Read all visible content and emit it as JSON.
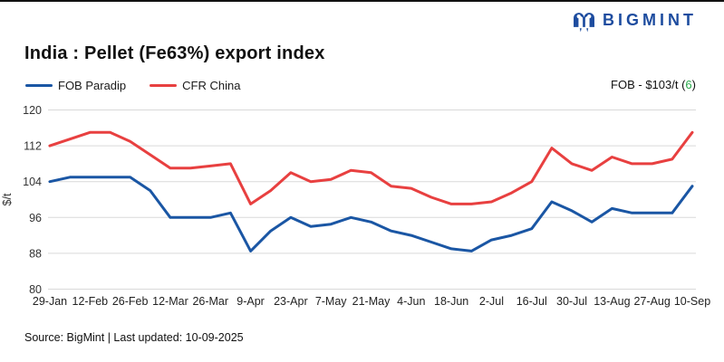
{
  "header": {
    "logo_text": "BIGMINT"
  },
  "annotation": {
    "prefix": "FOB - $103/t (",
    "value": "6",
    "suffix": ")"
  },
  "footer": {
    "source": "Source: BigMint | Last updated: 10-09-2025"
  },
  "colors": {
    "fob_blue": "#1a56a4",
    "cfr_red": "#e84040",
    "grid": "#d9d9d9",
    "tick_text": "#333333",
    "delta_green": "#27a84a",
    "logo_navy": "#1d4c9f"
  },
  "chart_data": {
    "type": "line",
    "title": "India : Pellet (Fe63%) export index",
    "xlabel": "",
    "ylabel": "$/t",
    "ylim": [
      80,
      120
    ],
    "yticks": [
      120,
      112,
      104,
      96,
      88,
      80
    ],
    "grid": "horizontal",
    "legend_position": "top-left",
    "x_tick_labels": [
      "29-Jan",
      "12-Feb",
      "26-Feb",
      "12-Mar",
      "26-Mar",
      "9-Apr",
      "23-Apr",
      "7-May",
      "21-May",
      "4-Jun",
      "18-Jun",
      "2-Jul",
      "16-Jul",
      "30-Jul",
      "13-Aug",
      "27-Aug",
      "10-Sep"
    ],
    "x": [
      "29-Jan",
      "5-Feb",
      "12-Feb",
      "19-Feb",
      "26-Feb",
      "5-Mar",
      "12-Mar",
      "19-Mar",
      "26-Mar",
      "2-Apr",
      "9-Apr",
      "16-Apr",
      "23-Apr",
      "30-Apr",
      "7-May",
      "14-May",
      "21-May",
      "28-May",
      "4-Jun",
      "11-Jun",
      "18-Jun",
      "25-Jun",
      "2-Jul",
      "9-Jul",
      "16-Jul",
      "23-Jul",
      "30-Jul",
      "6-Aug",
      "13-Aug",
      "20-Aug",
      "27-Aug",
      "3-Sep",
      "10-Sep"
    ],
    "series": [
      {
        "name": "FOB Paradip",
        "color": "#1a56a4",
        "values": [
          104,
          105,
          105,
          105,
          105,
          102,
          96,
          96,
          96,
          97,
          88.5,
          93,
          96,
          94,
          94.5,
          96,
          95,
          93,
          92,
          90.5,
          89,
          88.5,
          91,
          92,
          93.5,
          99.5,
          97.5,
          95,
          98,
          97,
          97,
          97,
          103
        ]
      },
      {
        "name": "CFR China",
        "color": "#e84040",
        "values": [
          112,
          113.5,
          115,
          115,
          113,
          110,
          107,
          107,
          107.5,
          108,
          99,
          102,
          106,
          104,
          104.5,
          106.5,
          106,
          103,
          102.5,
          100.5,
          99,
          99,
          99.5,
          101.5,
          104,
          111.5,
          108,
          106.5,
          109.5,
          108,
          108,
          109,
          115
        ]
      }
    ]
  }
}
